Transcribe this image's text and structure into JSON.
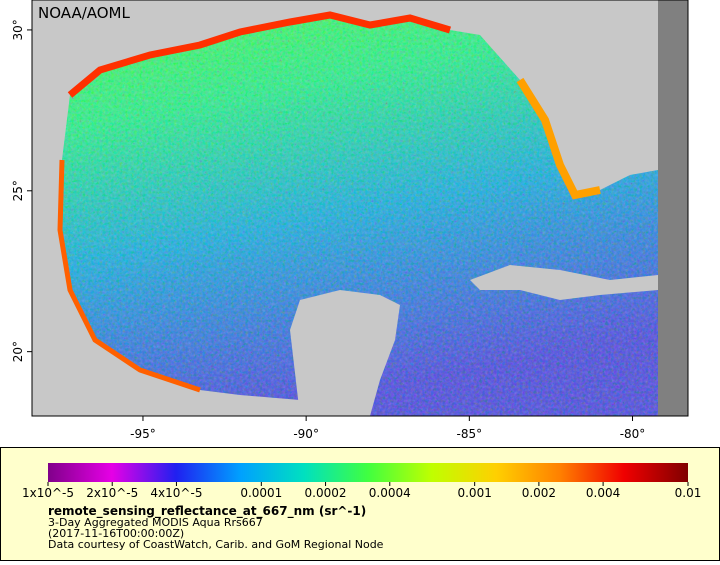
{
  "watermark": "NOAA/AOML",
  "map": {
    "xlim": [
      -98.4,
      -78.3
    ],
    "ylim": [
      18.0,
      30.93
    ],
    "xticks": [
      {
        "value": -95,
        "label": "-95°"
      },
      {
        "value": -90,
        "label": "-90°"
      },
      {
        "value": -85,
        "label": "-85°"
      },
      {
        "value": -80,
        "label": "-80°"
      }
    ],
    "yticks": [
      {
        "value": 20,
        "label": "20°"
      },
      {
        "value": 25,
        "label": "25°"
      },
      {
        "value": 30,
        "label": "30°"
      }
    ]
  },
  "colorbar": {
    "scale": "log",
    "lim": [
      1e-05,
      0.01
    ],
    "colors": [
      "#80008a",
      "#e600e6",
      "#2020f0",
      "#00a0ff",
      "#00e0c0",
      "#40ff40",
      "#c0ff00",
      "#ffd000",
      "#ff8000",
      "#f00000",
      "#800000"
    ],
    "ticks": [
      {
        "value": 1e-05,
        "label": "1x10^-5"
      },
      {
        "value": 2e-05,
        "label": "2x10^-5"
      },
      {
        "value": 4e-05,
        "label": "4x10^-5"
      },
      0.0001,
      0.0002,
      0.0004,
      0.001,
      0.002,
      0.004,
      0.01
    ]
  },
  "legend": {
    "title": "remote_sensing_reflectance_at_667_nm (sr^-1)",
    "lines": [
      "3-Day Aggregated MODIS Aqua Rrs667",
      "(2017-11-16T00:00:00Z)",
      "Data courtesy of CoastWatch, Carib. and GoM Regional Node"
    ]
  }
}
